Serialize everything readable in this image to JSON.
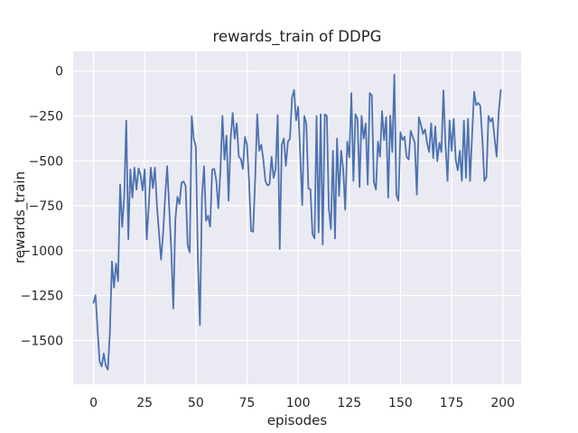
{
  "chart_data": {
    "type": "line",
    "title": "rewards_train of DDPG",
    "xlabel": "episodes",
    "ylabel": "rewards_train",
    "xlim": [
      -9.95,
      208.95
    ],
    "ylim": [
      -1744,
      109
    ],
    "xticks": [
      0,
      25,
      50,
      75,
      100,
      125,
      150,
      175,
      200
    ],
    "yticks": [
      0,
      -250,
      -500,
      -750,
      -1000,
      -1250,
      -1500
    ],
    "grid": true,
    "legend": null,
    "style": {
      "line_color": "#4C72B0",
      "plot_bg": "#EAEAF2",
      "grid_color": "#FFFFFF",
      "text_color": "#262626",
      "line_width": 1.8
    },
    "series": [
      {
        "name": "rewards_train",
        "points": [
          [
            0,
            -1290
          ],
          [
            1,
            -1248
          ],
          [
            2,
            -1445
          ],
          [
            3,
            -1618
          ],
          [
            4,
            -1645
          ],
          [
            5,
            -1572
          ],
          [
            6,
            -1640
          ],
          [
            7,
            -1662
          ],
          [
            8,
            -1455
          ],
          [
            9,
            -1060
          ],
          [
            10,
            -1205
          ],
          [
            11,
            -1072
          ],
          [
            12,
            -1170
          ],
          [
            13,
            -632
          ],
          [
            14,
            -868
          ],
          [
            15,
            -700
          ],
          [
            16,
            -276
          ],
          [
            17,
            -936
          ],
          [
            18,
            -548
          ],
          [
            19,
            -705
          ],
          [
            20,
            -538
          ],
          [
            21,
            -660
          ],
          [
            22,
            -542
          ],
          [
            23,
            -580
          ],
          [
            24,
            -665
          ],
          [
            25,
            -548
          ],
          [
            26,
            -938
          ],
          [
            27,
            -750
          ],
          [
            28,
            -538
          ],
          [
            29,
            -652
          ],
          [
            30,
            -538
          ],
          [
            31,
            -750
          ],
          [
            32,
            -900
          ],
          [
            33,
            -1050
          ],
          [
            34,
            -905
          ],
          [
            35,
            -700
          ],
          [
            36,
            -530
          ],
          [
            37,
            -760
          ],
          [
            38,
            -1000
          ],
          [
            39,
            -1322
          ],
          [
            40,
            -825
          ],
          [
            41,
            -700
          ],
          [
            42,
            -740
          ],
          [
            43,
            -622
          ],
          [
            44,
            -615
          ],
          [
            45,
            -640
          ],
          [
            46,
            -968
          ],
          [
            47,
            -1010
          ],
          [
            48,
            -252
          ],
          [
            49,
            -378
          ],
          [
            50,
            -420
          ],
          [
            51,
            -1050
          ],
          [
            52,
            -1415
          ],
          [
            53,
            -700
          ],
          [
            54,
            -530
          ],
          [
            55,
            -833
          ],
          [
            56,
            -806
          ],
          [
            57,
            -866
          ],
          [
            58,
            -548
          ],
          [
            59,
            -545
          ],
          [
            60,
            -610
          ],
          [
            61,
            -764
          ],
          [
            62,
            -560
          ],
          [
            63,
            -250
          ],
          [
            64,
            -494
          ],
          [
            65,
            -360
          ],
          [
            66,
            -722
          ],
          [
            67,
            -380
          ],
          [
            68,
            -234
          ],
          [
            69,
            -376
          ],
          [
            70,
            -292
          ],
          [
            71,
            -477
          ],
          [
            72,
            -490
          ],
          [
            73,
            -545
          ],
          [
            74,
            -368
          ],
          [
            75,
            -410
          ],
          [
            76,
            -612
          ],
          [
            77,
            -890
          ],
          [
            78,
            -895
          ],
          [
            79,
            -600
          ],
          [
            80,
            -241
          ],
          [
            81,
            -444
          ],
          [
            82,
            -410
          ],
          [
            83,
            -494
          ],
          [
            84,
            -612
          ],
          [
            85,
            -637
          ],
          [
            86,
            -630
          ],
          [
            87,
            -477
          ],
          [
            88,
            -595
          ],
          [
            89,
            -545
          ],
          [
            90,
            -245
          ],
          [
            91,
            -991
          ],
          [
            92,
            -410
          ],
          [
            93,
            -376
          ],
          [
            94,
            -528
          ],
          [
            95,
            -393
          ],
          [
            96,
            -376
          ],
          [
            97,
            -150
          ],
          [
            98,
            -106
          ],
          [
            99,
            -275
          ],
          [
            100,
            -199
          ],
          [
            101,
            -460
          ],
          [
            102,
            -747
          ],
          [
            103,
            -250
          ],
          [
            104,
            -292
          ],
          [
            105,
            -655
          ],
          [
            106,
            -658
          ],
          [
            107,
            -907
          ],
          [
            108,
            -932
          ],
          [
            109,
            -250
          ],
          [
            110,
            -899
          ],
          [
            111,
            -241
          ],
          [
            112,
            -966
          ],
          [
            113,
            -241
          ],
          [
            114,
            -250
          ],
          [
            115,
            -764
          ],
          [
            116,
            -880
          ],
          [
            117,
            -444
          ],
          [
            118,
            -932
          ],
          [
            119,
            -376
          ],
          [
            120,
            -695
          ],
          [
            121,
            -444
          ],
          [
            122,
            -545
          ],
          [
            123,
            -772
          ],
          [
            124,
            -393
          ],
          [
            125,
            -480
          ],
          [
            126,
            -123
          ],
          [
            127,
            -612
          ],
          [
            128,
            -241
          ],
          [
            129,
            -267
          ],
          [
            130,
            -646
          ],
          [
            131,
            -250
          ],
          [
            132,
            -376
          ],
          [
            133,
            -292
          ],
          [
            134,
            -632
          ],
          [
            135,
            -123
          ],
          [
            136,
            -137
          ],
          [
            137,
            -617
          ],
          [
            138,
            -660
          ],
          [
            139,
            -393
          ],
          [
            140,
            -477
          ],
          [
            141,
            -223
          ],
          [
            142,
            -384
          ],
          [
            143,
            -257
          ],
          [
            144,
            -705
          ],
          [
            145,
            -248
          ],
          [
            146,
            -451
          ],
          [
            147,
            -20
          ],
          [
            148,
            -688
          ],
          [
            149,
            -722
          ],
          [
            150,
            -341
          ],
          [
            151,
            -384
          ],
          [
            152,
            -366
          ],
          [
            153,
            -477
          ],
          [
            154,
            -493
          ],
          [
            155,
            -333
          ],
          [
            156,
            -366
          ],
          [
            157,
            -400
          ],
          [
            158,
            -688
          ],
          [
            159,
            -257
          ],
          [
            160,
            -299
          ],
          [
            161,
            -350
          ],
          [
            162,
            -325
          ],
          [
            163,
            -400
          ],
          [
            164,
            -451
          ],
          [
            165,
            -291
          ],
          [
            166,
            -485
          ],
          [
            167,
            -308
          ],
          [
            168,
            -502
          ],
          [
            169,
            -400
          ],
          [
            170,
            -451
          ],
          [
            171,
            -108
          ],
          [
            172,
            -410
          ],
          [
            173,
            -612
          ],
          [
            174,
            -275
          ],
          [
            175,
            -444
          ],
          [
            176,
            -267
          ],
          [
            177,
            -494
          ],
          [
            178,
            -553
          ],
          [
            179,
            -444
          ],
          [
            180,
            -612
          ],
          [
            181,
            -275
          ],
          [
            182,
            -595
          ],
          [
            183,
            -267
          ],
          [
            184,
            -612
          ],
          [
            185,
            -359
          ],
          [
            186,
            -115
          ],
          [
            187,
            -190
          ],
          [
            188,
            -178
          ],
          [
            189,
            -195
          ],
          [
            190,
            -376
          ],
          [
            191,
            -612
          ],
          [
            192,
            -590
          ],
          [
            193,
            -250
          ],
          [
            194,
            -282
          ],
          [
            195,
            -262
          ],
          [
            196,
            -376
          ],
          [
            197,
            -477
          ],
          [
            198,
            -230
          ],
          [
            199,
            -106
          ]
        ]
      }
    ]
  }
}
